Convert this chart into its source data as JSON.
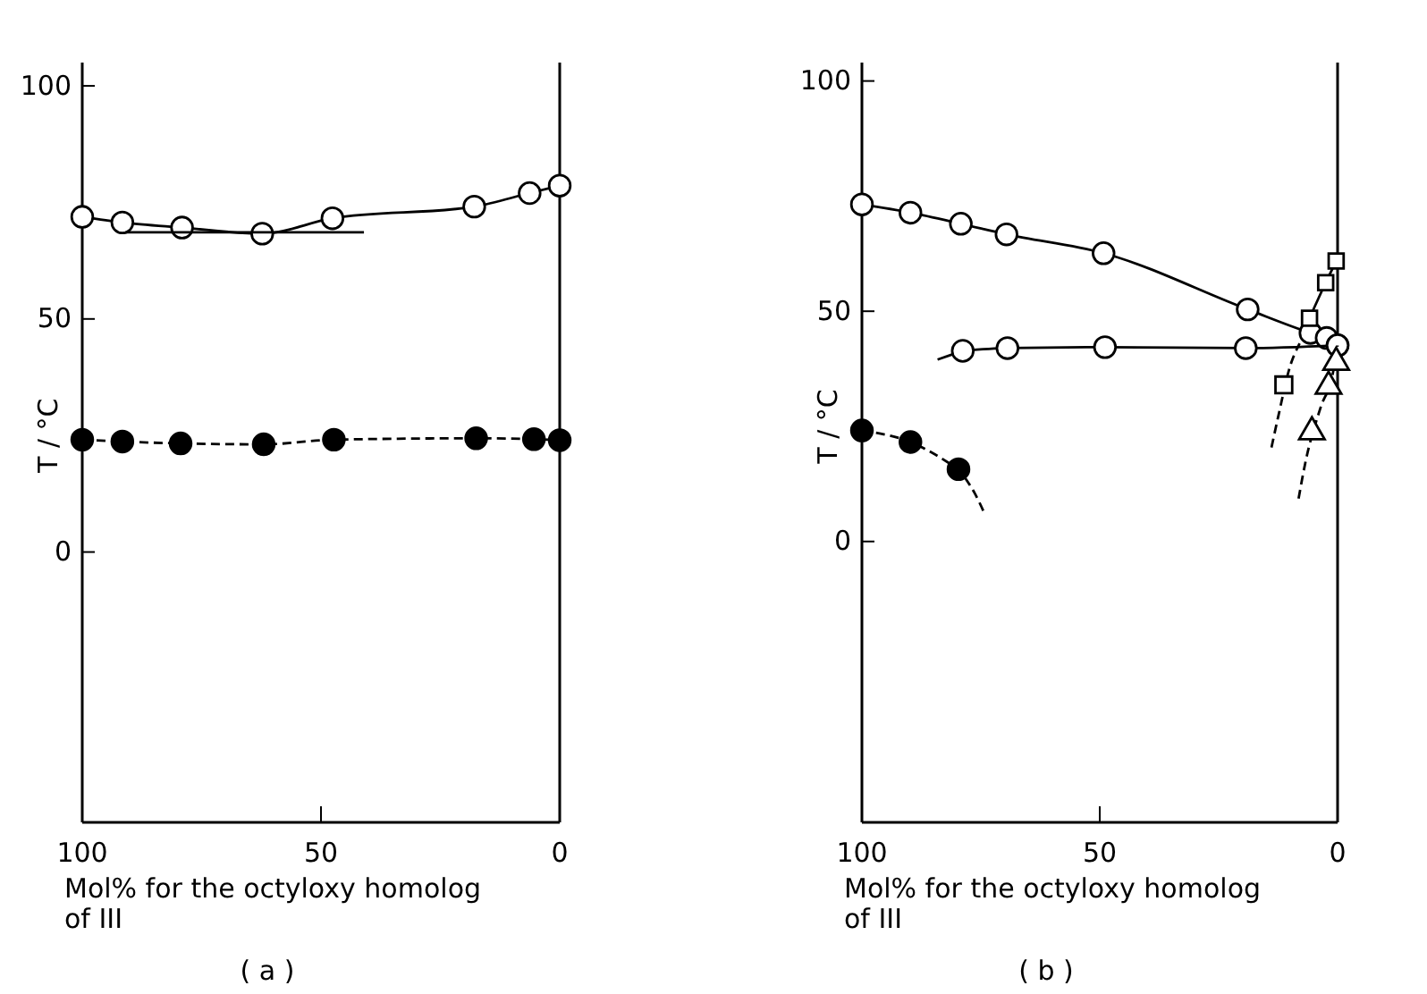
{
  "chart_data": [
    {
      "type": "line",
      "title": "( a )",
      "xlabel": "Mol% for the octyloxy homolog of III",
      "ylabel": "T / °C",
      "xlim": [
        100,
        0
      ],
      "xticks": [
        100,
        50,
        0
      ],
      "ylim": [
        -58,
        105
      ],
      "yticks": [
        0,
        50,
        100
      ],
      "grid": false,
      "series": [
        {
          "color": "#ffffff",
          "marker": "circle",
          "line_style": "solid",
          "x": [
            100,
            91.6,
            79.1,
            62.3,
            47.6,
            17.9,
            6.3,
            0
          ],
          "values": [
            71.9,
            70.7,
            69.6,
            68.3,
            71.6,
            74.1,
            77.0,
            78.6
          ]
        },
        {
          "color": "#000000",
          "marker": "none",
          "line_style": "solid",
          "x": [
            91,
            41
          ],
          "values": [
            68.6,
            68.6
          ]
        },
        {
          "color": "#000000",
          "marker": "circle",
          "line_style": "dashed",
          "x": [
            100,
            91.6,
            79.4,
            62,
            47.3,
            17.5,
            5.4,
            0
          ],
          "values": [
            24.1,
            23.7,
            23.3,
            23.1,
            24.1,
            24.4,
            24.2,
            24.0
          ]
        }
      ]
    },
    {
      "type": "line",
      "title": "( b )",
      "xlabel": "Mol% for the octyloxy homolog of III",
      "ylabel": "T / °C",
      "xlim": [
        100,
        0
      ],
      "xticks": [
        100,
        50,
        0
      ],
      "ylim": [
        -61,
        104
      ],
      "yticks": [
        0,
        50,
        100
      ],
      "grid": false,
      "series": [
        {
          "color": "#ffffff",
          "marker": "circle",
          "line_style": "solid",
          "x": [
            100,
            89.8,
            79.2,
            69.6,
            49.2,
            18.9,
            5.7,
            2.3,
            0
          ],
          "values": [
            73.2,
            71.4,
            69.0,
            66.7,
            62.6,
            50.4,
            45.3,
            44.2,
            42.6
          ]
        },
        {
          "color": "#000000",
          "marker": "none",
          "line_style": "solid",
          "x": [
            84.1,
            80.8
          ],
          "values": [
            39.5,
            40.7
          ]
        },
        {
          "color": "#ffffff",
          "marker": "circle",
          "line_style": "solid",
          "x": [
            78.8,
            69.4,
            48.9,
            19.3,
            0
          ],
          "values": [
            41.4,
            42.0,
            42.2,
            42.0,
            42.6
          ]
        },
        {
          "color": "#ffffff",
          "marker": "square",
          "line_style": "solid",
          "x": [
            5.9,
            2.5,
            0.3
          ],
          "values": [
            48.5,
            56.2,
            60.9
          ]
        },
        {
          "color": "#000000",
          "marker": "none",
          "line_style": "dashed",
          "x": [
            13.9,
            12.4,
            10.0,
            8.0
          ],
          "values": [
            20.4,
            27.5,
            38.0,
            43.0
          ]
        },
        {
          "type": "scatter",
          "color": "#ffffff",
          "marker": "square",
          "x": [
            11.3
          ],
          "values": [
            34.0
          ]
        },
        {
          "color": "#000000",
          "marker": "none",
          "line_style": "dashed",
          "x": [
            8.2,
            6.8,
            3.6,
            1.0,
            0
          ],
          "values": [
            9.3,
            17.0,
            29.0,
            36.5,
            42.6
          ]
        },
        {
          "type": "scatter",
          "color": "#ffffff",
          "marker": "triangle",
          "x": [
            5.4,
            1.9,
            0.3
          ],
          "values": [
            23.8,
            33.7,
            38.9
          ]
        },
        {
          "color": "#000000",
          "marker": "circle",
          "line_style": "dashed",
          "x": [
            100,
            89.8,
            79.7
          ],
          "values": [
            24.1,
            21.6,
            15.7
          ]
        },
        {
          "color": "#000000",
          "marker": "none",
          "line_style": "dashed",
          "x": [
            78.3,
            76.3,
            74.1
          ],
          "values": [
            13.8,
            10.5,
            5.8
          ]
        }
      ]
    }
  ]
}
